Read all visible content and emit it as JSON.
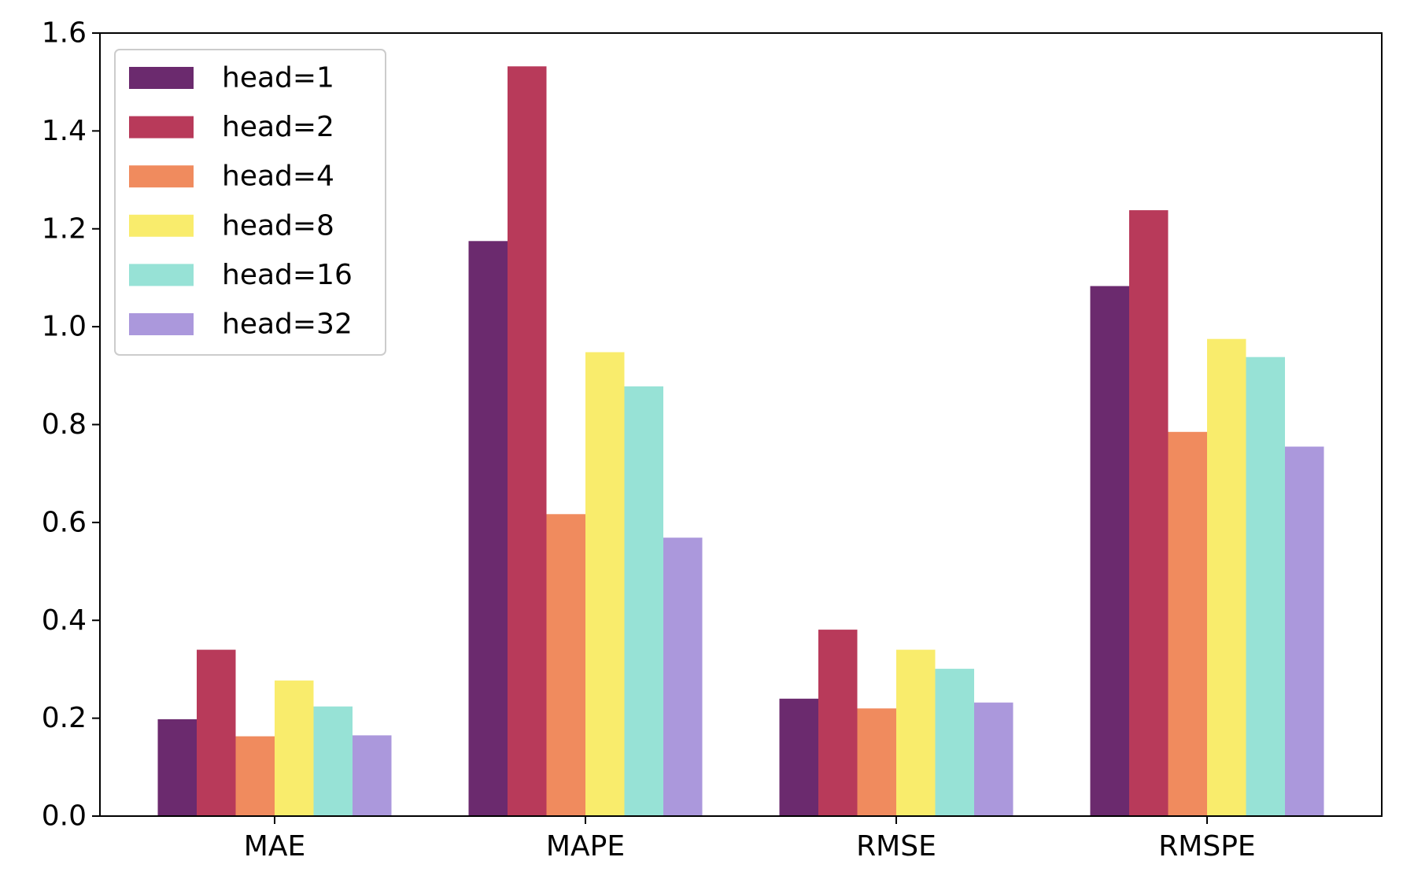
{
  "chart_data": {
    "type": "bar",
    "categories": [
      "MAE",
      "MAPE",
      "RMSE",
      "RMSPE"
    ],
    "series": [
      {
        "name": "head=1",
        "color": "#6b2a6e",
        "values": [
          0.198,
          1.175,
          0.24,
          1.083
        ]
      },
      {
        "name": "head=2",
        "color": "#b83a5a",
        "values": [
          0.34,
          1.532,
          0.381,
          1.238
        ]
      },
      {
        "name": "head=4",
        "color": "#f08b5e",
        "values": [
          0.163,
          0.617,
          0.22,
          0.785
        ]
      },
      {
        "name": "head=8",
        "color": "#f9ec6c",
        "values": [
          0.277,
          0.948,
          0.34,
          0.975
        ]
      },
      {
        "name": "head=16",
        "color": "#97e2d6",
        "values": [
          0.224,
          0.878,
          0.301,
          0.938
        ]
      },
      {
        "name": "head=32",
        "color": "#ab98dc",
        "values": [
          0.165,
          0.569,
          0.232,
          0.755
        ]
      }
    ],
    "yticks": [
      "0.0",
      "0.2",
      "0.4",
      "0.6",
      "0.8",
      "1.0",
      "1.2",
      "1.4",
      "1.6"
    ],
    "ylim": [
      0,
      1.6
    ],
    "title": "",
    "xlabel": "",
    "ylabel": "",
    "grid": false,
    "legend_position": "top-left"
  }
}
